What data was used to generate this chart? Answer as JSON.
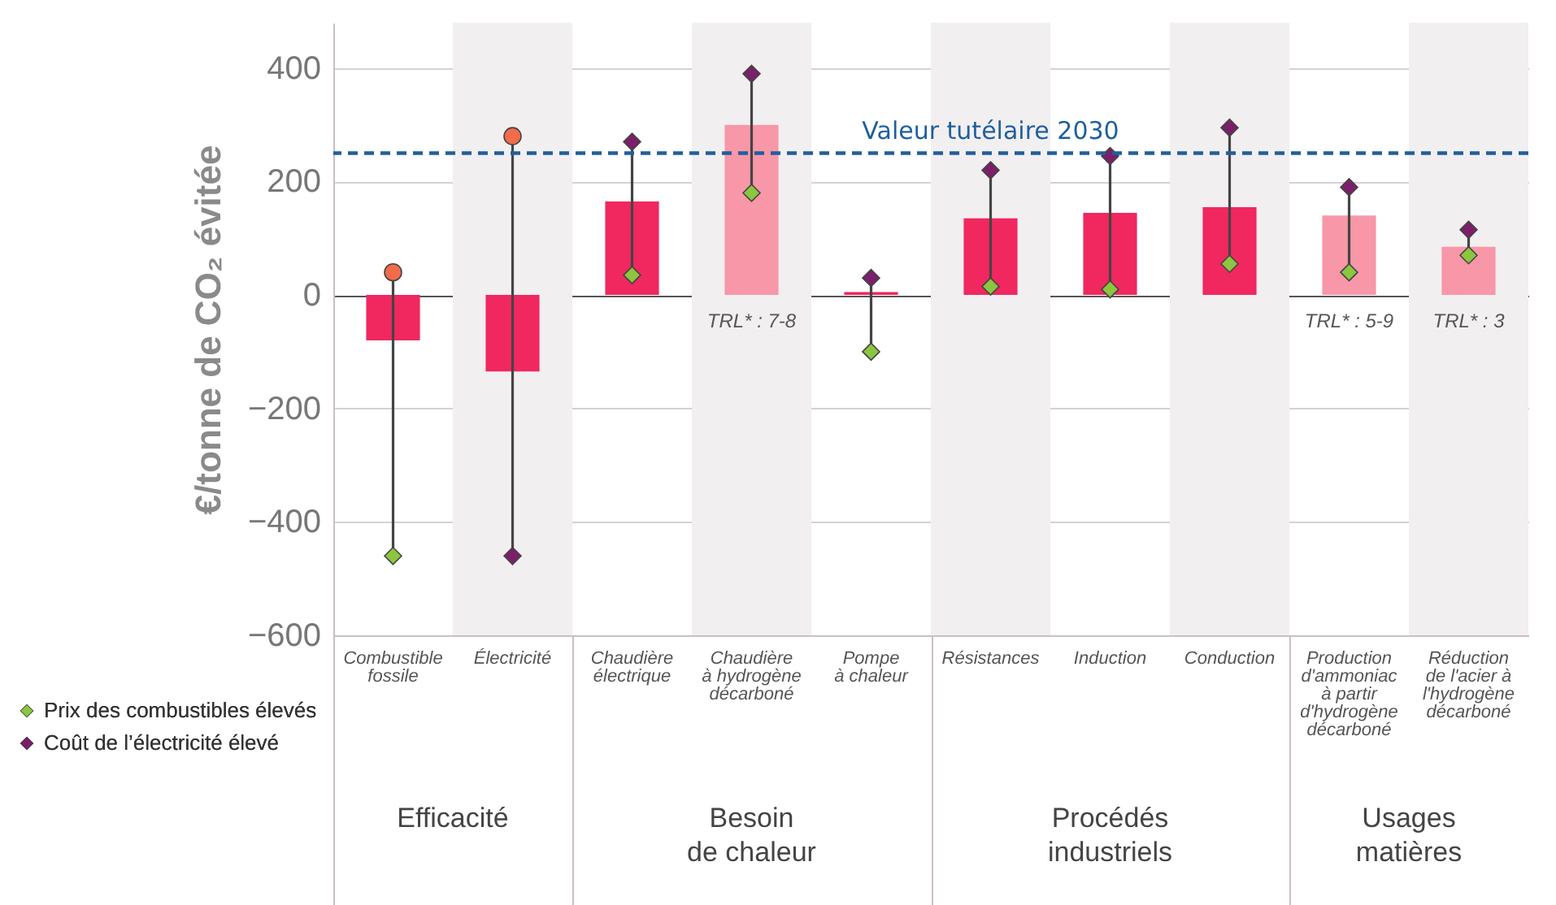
{
  "chart_data": {
    "type": "bar",
    "ylabel": "€/tonne de CO₂ évitée",
    "categories": [
      "Combustible\nfossile",
      "Électricité",
      "Chaudière\nélectrique",
      "Chaudière\nà hydrogène\ndécarboné",
      "Pompe\nà chaleur",
      "Résistances",
      "Induction",
      "Conduction",
      "Production\nd'ammoniac\nà partir\nd'hydrogène\ndécarboné",
      "Réduction\nde l'acier à\nl'hydrogène\ndécarboné"
    ],
    "series": [
      {
        "colors": [
          "#f0285f",
          "#f0285f",
          "#f0285f",
          "#f797a8",
          "#f0285f",
          "#f0285f",
          "#f0285f",
          "#f0285f",
          "#f797a8",
          "#f797a8"
        ],
        "values": [
          -80,
          -135,
          165,
          300,
          5,
          135,
          145,
          155,
          140,
          85
        ]
      },
      {
        "type": "scatter",
        "marker": "circle",
        "color": "#f26b4a",
        "x": [
          "Combustible\nfossile",
          "Électricité"
        ],
        "values": [
          40,
          280
        ]
      },
      {
        "type": "scatter",
        "marker": "diamond",
        "name": "Prix des combustibles élevés",
        "color": "#8cc63f",
        "values": [
          -460,
          null,
          35,
          180,
          -100,
          15,
          10,
          55,
          40,
          70
        ]
      },
      {
        "type": "scatter",
        "marker": "diamond",
        "name": "Coût de l’électricité élevé",
        "color": "#7b1f6a",
        "values": [
          null,
          -460,
          270,
          390,
          30,
          220,
          245,
          295,
          190,
          115
        ]
      }
    ],
    "ylim": [
      -600,
      480
    ],
    "yticks": [
      -600,
      -400,
      -200,
      0,
      200,
      400
    ],
    "grid": "y",
    "legend": "bottom left",
    "ref_lines": [
      {
        "axis": "y",
        "value": 250,
        "label": "Valeur tutélaire 2030",
        "color": "#1f5f9e",
        "line_style": "dashed"
      }
    ],
    "bands": [
      {
        "axis": "x",
        "from": "Électricité",
        "to": "Électricité",
        "color": "#f2eff0"
      },
      {
        "axis": "x",
        "from": "Chaudière\nà hydrogène\ndécarboné",
        "to": "Chaudière\nà hydrogène\ndécarboné",
        "color": "#f2eff0"
      },
      {
        "axis": "x",
        "from": "Résistances",
        "to": "Résistances",
        "color": "#f2eff0"
      },
      {
        "axis": "x",
        "from": "Conduction",
        "to": "Conduction",
        "color": "#f2eff0"
      },
      {
        "axis": "x",
        "from": "Réduction\nde l'acier à\nl'hydrogène\ndécarboné",
        "to": "Réduction\nde l'acier à\nl'hydrogène\ndécarboné",
        "color": "#f2eff0"
      }
    ],
    "annotations": [
      "Efficacité",
      "Besoin\nde chaleur",
      "Procédés\nindustriels",
      "Usages\nmatières",
      {
        "text": "TRL* : 7-8",
        "x": "Chaudière\nà hydrogène\ndécarboné",
        "y": 0
      },
      {
        "text": "TRL* : 5-9",
        "x": "Production\nd'ammoniac\nà partir\nd'hydrogène\ndécarboné",
        "y": 0
      },
      {
        "text": "TRL* : 3",
        "x": "Réduction\nde l'acier à\nl'hydrogène\ndécarboné",
        "y": 0
      }
    ]
  }
}
